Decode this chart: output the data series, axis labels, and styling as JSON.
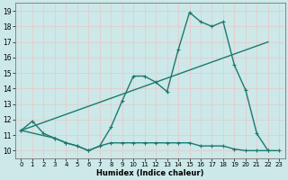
{
  "xlabel": "Humidex (Indice chaleur)",
  "bg_color": "#cce8e8",
  "grid_color": "#b0d4d4",
  "line_color": "#1a7a6e",
  "xlim": [
    -0.5,
    23.5
  ],
  "ylim": [
    9.5,
    19.5
  ],
  "xticks": [
    0,
    1,
    2,
    3,
    4,
    5,
    6,
    7,
    8,
    9,
    10,
    11,
    12,
    13,
    14,
    15,
    16,
    17,
    18,
    19,
    20,
    21,
    22,
    23
  ],
  "yticks": [
    10,
    11,
    12,
    13,
    14,
    15,
    16,
    17,
    18,
    19
  ],
  "line1_x": [
    0,
    1,
    2,
    3,
    4,
    5,
    6,
    7,
    8,
    9,
    10,
    11,
    12,
    13,
    14,
    15,
    16,
    17,
    18,
    19,
    20,
    21,
    22
  ],
  "line1_y": [
    11.3,
    11.9,
    11.1,
    10.8,
    10.5,
    10.3,
    10.0,
    10.3,
    11.5,
    13.2,
    14.8,
    14.8,
    14.4,
    13.8,
    16.5,
    18.9,
    18.3,
    18.0,
    18.3,
    15.5,
    13.9,
    11.1,
    10.0
  ],
  "line2_x": [
    0,
    3,
    4,
    5,
    6,
    7,
    8,
    9,
    10,
    11,
    12,
    13,
    14,
    15,
    16,
    17,
    18,
    19,
    20,
    21,
    22,
    23
  ],
  "line2_y": [
    11.3,
    10.8,
    10.5,
    10.3,
    10.0,
    10.3,
    10.5,
    10.5,
    10.5,
    10.5,
    10.5,
    10.5,
    10.5,
    10.5,
    10.3,
    10.3,
    10.3,
    10.1,
    10.0,
    10.0,
    10.0,
    10.0
  ],
  "line3_x": [
    0,
    22
  ],
  "line3_y": [
    11.3,
    17.0
  ],
  "marker_size": 3,
  "line_width": 1.0
}
